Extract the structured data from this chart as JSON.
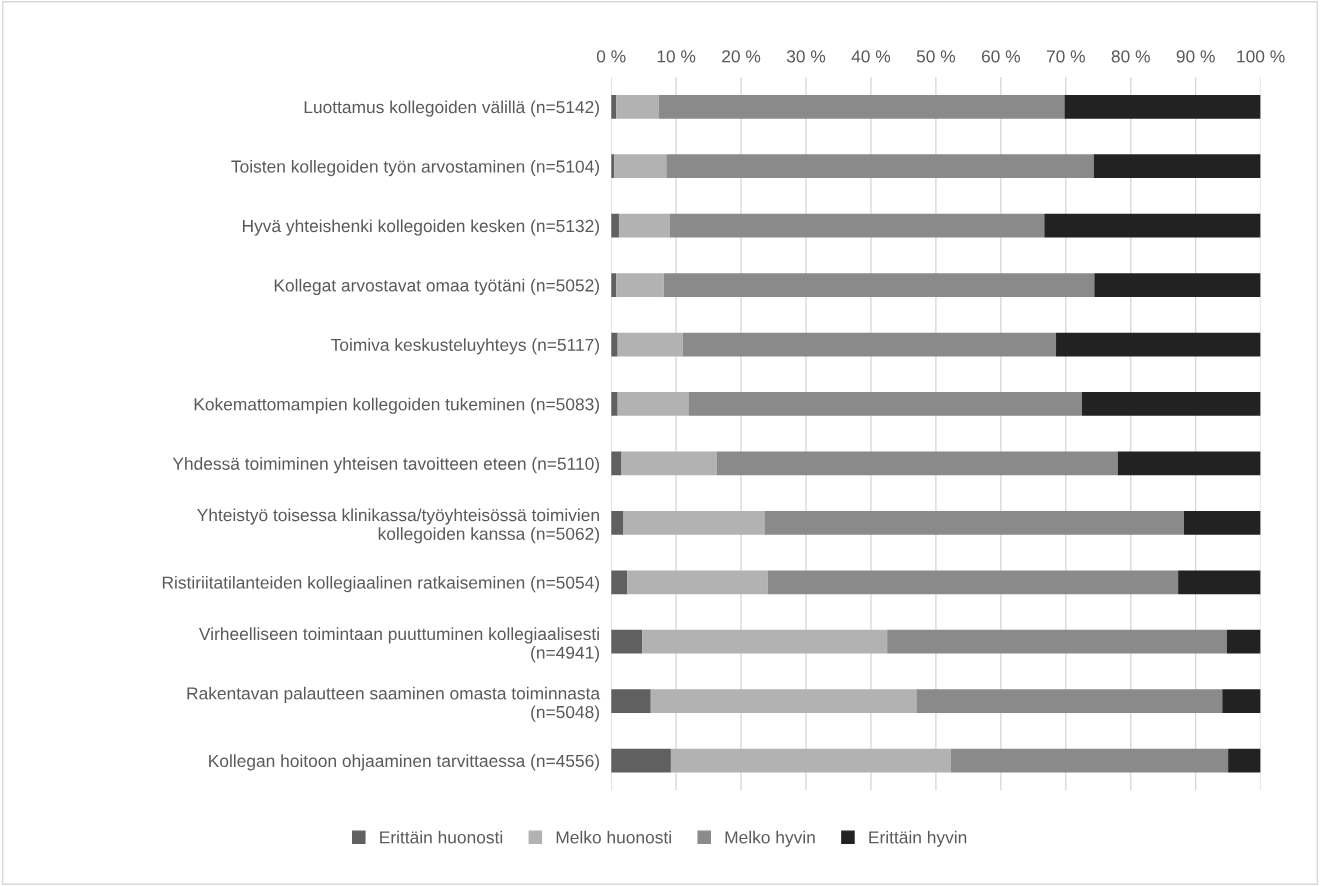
{
  "chart_data": {
    "type": "bar",
    "orientation": "horizontal",
    "stacked": true,
    "categories": [
      "Luottamus kollegoiden välillä (n=5142)",
      "Toisten kollegoiden työn arvostaminen (n=5104)",
      "Hyvä yhteishenki kollegoiden kesken (n=5132)",
      "Kollegat arvostavat omaa työtäni (n=5052)",
      "Toimiva keskusteluyhteys (n=5117)",
      "Kokemattomampien kollegoiden tukeminen (n=5083)",
      "Yhdessä toimiminen yhteisen tavoitteen eteen (n=5110)",
      "Yhteistyö toisessa klinikassa/työyhteisössä toimivien\nkollegoiden kanssa (n=5062)",
      "Ristiriitatilanteiden kollegiaalinen ratkaiseminen (n=5054)",
      "Virheelliseen toimintaan puuttuminen kollegiaalisesti\n(n=4941)",
      "Rakentavan palautteen saaminen omasta toiminnasta\n(n=5048)",
      "Kollegan hoitoon ohjaaminen tarvittaessa (n=4556)"
    ],
    "series": [
      {
        "name": "Erittäin huonosti",
        "color": "#606060",
        "values": [
          0.8,
          0.5,
          1.2,
          0.8,
          1.0,
          1.0,
          1.6,
          1.9,
          2.5,
          4.8,
          6.1,
          9.2
        ]
      },
      {
        "name": "Melko huonosti",
        "color": "#b2b2b2",
        "values": [
          6.5,
          8.0,
          7.8,
          7.3,
          10.0,
          10.9,
          14.7,
          21.7,
          21.6,
          37.7,
          40.9,
          43.1
        ]
      },
      {
        "name": "Melko hyvin",
        "color": "#8a8a8a",
        "values": [
          62.5,
          65.8,
          57.7,
          66.3,
          57.5,
          60.6,
          61.7,
          64.6,
          63.2,
          52.3,
          47.1,
          42.7
        ]
      },
      {
        "name": "Erittäin hyvin",
        "color": "#222222",
        "values": [
          30.2,
          25.7,
          33.3,
          25.6,
          31.5,
          27.5,
          22.0,
          11.8,
          12.7,
          5.2,
          5.9,
          5.0
        ]
      }
    ],
    "xlim": [
      0,
      100
    ],
    "xticks": [
      {
        "value": 0,
        "label": "0 %"
      },
      {
        "value": 10,
        "label": "10 %"
      },
      {
        "value": 20,
        "label": "20 %"
      },
      {
        "value": 30,
        "label": "30 %"
      },
      {
        "value": 40,
        "label": "40 %"
      },
      {
        "value": 50,
        "label": "50 %"
      },
      {
        "value": 60,
        "label": "60 %"
      },
      {
        "value": 70,
        "label": "70 %"
      },
      {
        "value": 80,
        "label": "80 %"
      },
      {
        "value": 90,
        "label": "90 %"
      },
      {
        "value": 100,
        "label": "100 %"
      }
    ],
    "grid": "x",
    "legend": "bottom"
  }
}
